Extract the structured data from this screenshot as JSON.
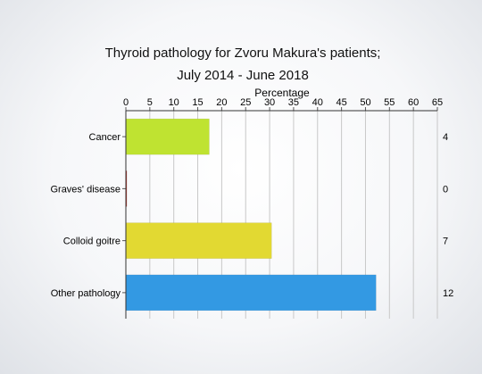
{
  "chart_data": {
    "type": "bar",
    "orientation": "horizontal",
    "title": "Thyroid pathology for Zvoru Makura's patients;",
    "subtitle": "July 2014 - June 2018",
    "xlabel": "Percentage",
    "x_axis_position": "top",
    "xlim": [
      0,
      65
    ],
    "xticks": [
      0,
      5,
      10,
      15,
      20,
      25,
      30,
      35,
      40,
      45,
      50,
      55,
      60,
      65
    ],
    "grid": true,
    "categories": [
      "Cancer",
      "Graves' disease",
      "Colloid goitre",
      "Other pathology"
    ],
    "values": [
      17.4,
      0.2,
      30.4,
      52.2
    ],
    "counts": [
      "4",
      "0",
      "7",
      "12"
    ],
    "colors": [
      "#bfe331",
      "#c0392b",
      "#e2d932",
      "#3399e3"
    ]
  }
}
